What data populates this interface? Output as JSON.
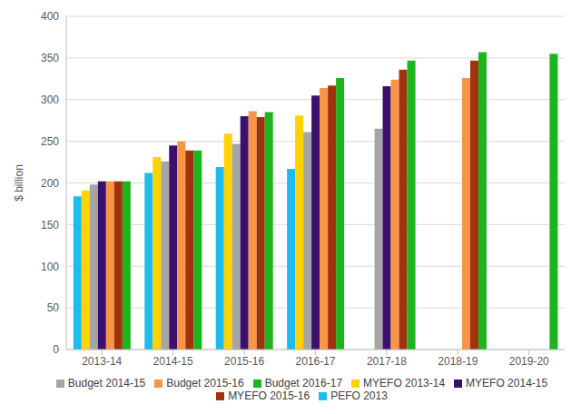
{
  "chart_data": {
    "type": "bar",
    "y_label": "$ billion",
    "categories": [
      "2013-14",
      "2014-15",
      "2015-16",
      "2016-17",
      "2017-18",
      "2018-19",
      "2019-20"
    ],
    "series": [
      {
        "name": "PEFO 2013",
        "color": "#1ebbee",
        "values": [
          184,
          212,
          219,
          217,
          null,
          null,
          null
        ]
      },
      {
        "name": "MYEFO 2013-14",
        "color": "#ffd200",
        "values": [
          191,
          231,
          259,
          281,
          null,
          null,
          null
        ]
      },
      {
        "name": "Budget 2014-15",
        "color": "#a5a5a5",
        "values": [
          198,
          226,
          247,
          261,
          265,
          null,
          null
        ]
      },
      {
        "name": "MYEFO 2014-15",
        "color": "#3b0f6e",
        "values": [
          202,
          245,
          280,
          305,
          316,
          null,
          null
        ]
      },
      {
        "name": "Budget 2015-16",
        "color": "#f79646",
        "values": [
          202,
          250,
          286,
          314,
          324,
          326,
          null
        ]
      },
      {
        "name": "MYEFO 2015-16",
        "color": "#a0330d",
        "values": [
          202,
          239,
          279,
          317,
          336,
          347,
          null
        ]
      },
      {
        "name": "Budget 2016-17",
        "color": "#1db41d",
        "values": [
          202,
          239,
          285,
          326,
          347,
          357,
          355
        ]
      }
    ],
    "ylim": [
      0,
      400
    ],
    "yticks": [
      0,
      50,
      100,
      150,
      200,
      250,
      300,
      350,
      400
    ],
    "grid": true,
    "legend": "bottom"
  }
}
